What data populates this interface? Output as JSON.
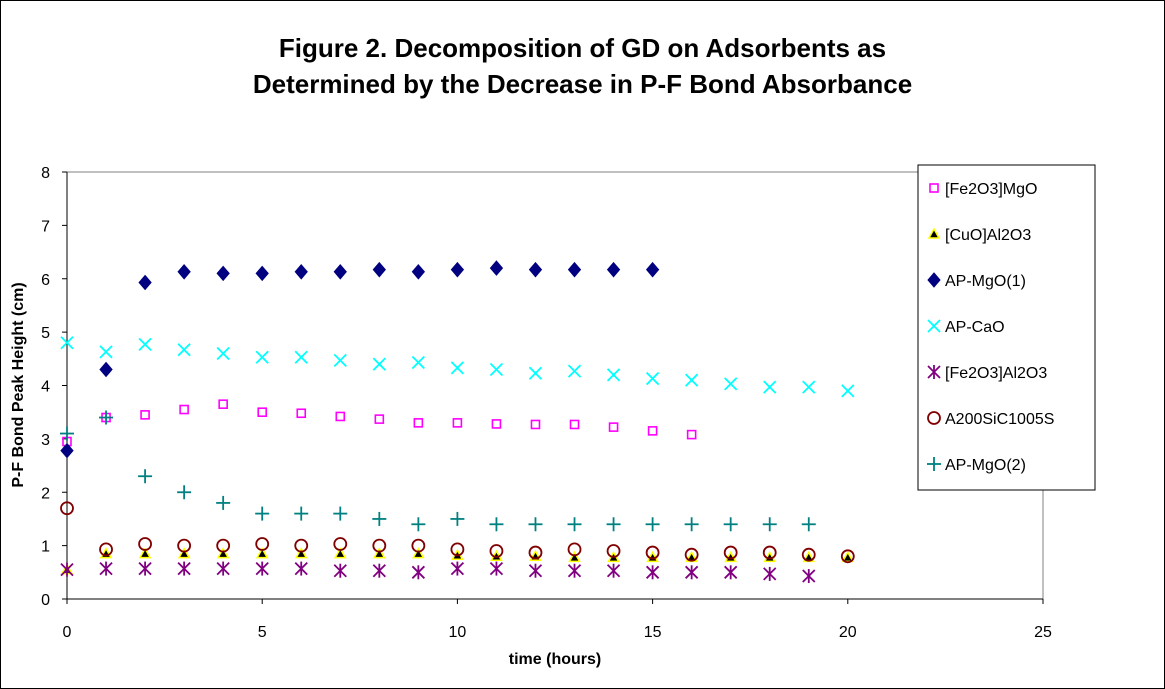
{
  "chart_data": {
    "type": "scatter",
    "title_line1": "Figure 2.  Decomposition of GD on Adsorbents as",
    "title_line2": "Determined by the Decrease in P-F Bond Absorbance",
    "xlabel": "time (hours)",
    "ylabel": "P-F Bond Peak Height (cm)",
    "xlim": [
      0,
      25
    ],
    "ylim": [
      0,
      8
    ],
    "xticks": [
      0,
      5,
      10,
      15,
      20,
      25
    ],
    "yticks": [
      0,
      1,
      2,
      3,
      4,
      5,
      6,
      7,
      8
    ],
    "grid": false,
    "legend_position": "right",
    "series": [
      {
        "name": "[Fe2O3]MgO",
        "marker": "square-open",
        "color": "#FF00FF",
        "x": [
          0,
          1,
          2,
          3,
          4,
          5,
          6,
          7,
          8,
          9,
          10,
          11,
          12,
          13,
          14,
          15,
          16
        ],
        "y": [
          2.95,
          3.4,
          3.45,
          3.55,
          3.65,
          3.5,
          3.48,
          3.42,
          3.37,
          3.3,
          3.3,
          3.28,
          3.27,
          3.27,
          3.22,
          3.15,
          3.08
        ]
      },
      {
        "name": "[CuO]Al2O3",
        "marker": "triangle",
        "color": "#FFFF00",
        "x": [
          0,
          1,
          2,
          3,
          4,
          5,
          6,
          7,
          8,
          9,
          10,
          11,
          12,
          13,
          14,
          15,
          16,
          17,
          18,
          19,
          20
        ],
        "y": [
          0.55,
          0.85,
          0.85,
          0.85,
          0.85,
          0.85,
          0.85,
          0.85,
          0.85,
          0.85,
          0.82,
          0.8,
          0.8,
          0.78,
          0.78,
          0.78,
          0.78,
          0.78,
          0.78,
          0.78,
          0.78
        ]
      },
      {
        "name": "AP-MgO(1)",
        "marker": "diamond",
        "color": "#000080",
        "x": [
          0,
          1,
          2,
          3,
          4,
          5,
          6,
          7,
          8,
          9,
          10,
          11,
          12,
          13,
          14,
          15
        ],
        "y": [
          2.78,
          4.3,
          5.93,
          6.13,
          6.1,
          6.1,
          6.13,
          6.13,
          6.17,
          6.13,
          6.17,
          6.2,
          6.17,
          6.17,
          6.17,
          6.17
        ]
      },
      {
        "name": "AP-CaO",
        "marker": "x",
        "color": "#00FFFF",
        "x": [
          0,
          1,
          2,
          3,
          4,
          5,
          6,
          7,
          8,
          9,
          10,
          11,
          12,
          13,
          14,
          15,
          16,
          17,
          18,
          19,
          20
        ],
        "y": [
          4.8,
          4.63,
          4.77,
          4.67,
          4.6,
          4.53,
          4.53,
          4.47,
          4.4,
          4.43,
          4.33,
          4.3,
          4.23,
          4.27,
          4.2,
          4.13,
          4.1,
          4.03,
          3.97,
          3.97,
          3.9
        ]
      },
      {
        "name": "[Fe2O3]Al2O3",
        "marker": "asterisk",
        "color": "#800080",
        "x": [
          0,
          1,
          2,
          3,
          4,
          5,
          6,
          7,
          8,
          9,
          10,
          11,
          12,
          13,
          14,
          15,
          16,
          17,
          18,
          19
        ],
        "y": [
          0.55,
          0.57,
          0.57,
          0.57,
          0.57,
          0.57,
          0.57,
          0.53,
          0.53,
          0.5,
          0.57,
          0.57,
          0.53,
          0.53,
          0.53,
          0.5,
          0.5,
          0.5,
          0.47,
          0.43
        ]
      },
      {
        "name": "A200SiC1005S",
        "marker": "circle-open",
        "color": "#800000",
        "x": [
          0,
          1,
          2,
          3,
          4,
          5,
          6,
          7,
          8,
          9,
          10,
          11,
          12,
          13,
          14,
          15,
          16,
          17,
          18,
          19,
          20
        ],
        "y": [
          1.7,
          0.93,
          1.03,
          1.0,
          1.0,
          1.03,
          1.0,
          1.03,
          1.0,
          1.0,
          0.93,
          0.9,
          0.87,
          0.93,
          0.9,
          0.87,
          0.83,
          0.87,
          0.87,
          0.83,
          0.8
        ]
      },
      {
        "name": "AP-MgO(2)",
        "marker": "plus",
        "color": "#008080",
        "x": [
          0,
          1,
          2,
          3,
          4,
          5,
          6,
          7,
          8,
          9,
          10,
          11,
          12,
          13,
          14,
          15,
          16,
          17,
          18,
          19
        ],
        "y": [
          3.1,
          3.4,
          2.3,
          2.0,
          1.8,
          1.6,
          1.6,
          1.6,
          1.5,
          1.4,
          1.5,
          1.4,
          1.4,
          1.4,
          1.4,
          1.4,
          1.4,
          1.4,
          1.4,
          1.4
        ]
      }
    ]
  }
}
